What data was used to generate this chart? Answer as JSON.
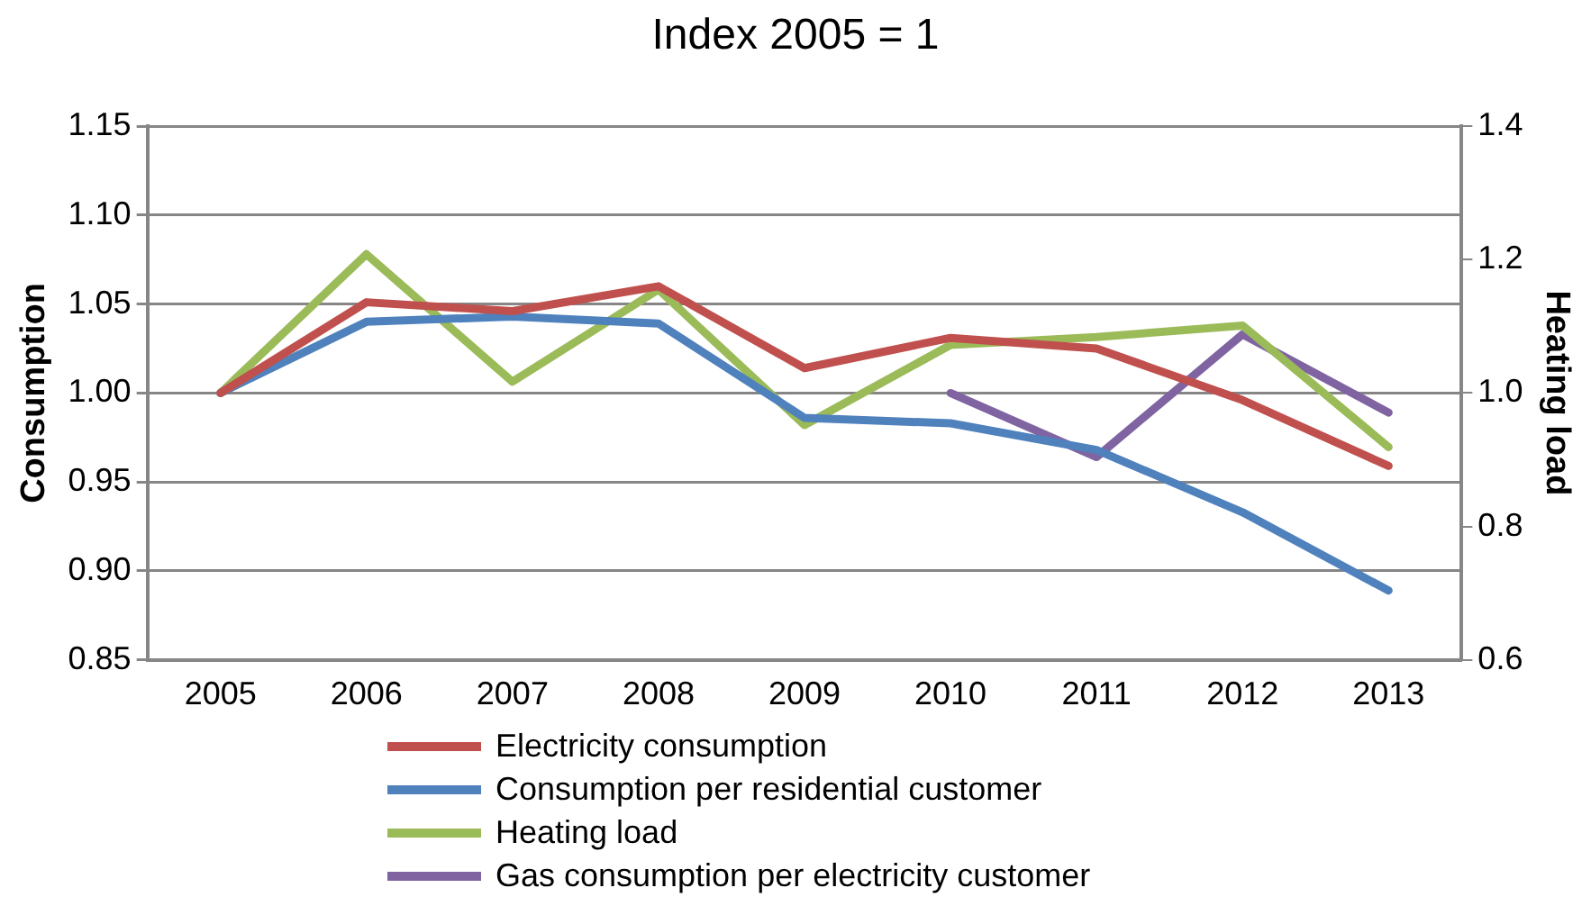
{
  "chart_data": {
    "type": "line",
    "title": "Index 2005 = 1",
    "ylabel": "Consumption",
    "y2label": "Heating load",
    "categories": [
      "2005",
      "2006",
      "2007",
      "2008",
      "2009",
      "2010",
      "2011",
      "2012",
      "2013"
    ],
    "series": [
      {
        "name": "Electricity consumption",
        "color": "#c0504d",
        "values": [
          1.0,
          1.051,
          1.046,
          1.06,
          1.014,
          1.031,
          1.025,
          0.996,
          0.959
        ]
      },
      {
        "name": "Consumption per residential customer",
        "color": "#4f81bd",
        "values": [
          1.0,
          1.04,
          1.043,
          1.039,
          0.986,
          0.983,
          0.968,
          0.933,
          0.889
        ]
      },
      {
        "name": "Heating load",
        "color": "#9bbb59",
        "axis": "y2",
        "values": [
          1.0,
          1.208,
          1.017,
          1.155,
          0.952,
          1.072,
          1.084,
          1.101,
          0.919
        ]
      },
      {
        "name": "Gas consumption per electricity customer",
        "color": "#8064a2",
        "values": [
          null,
          null,
          null,
          null,
          null,
          1.0,
          0.964,
          1.033,
          0.989
        ]
      }
    ],
    "ylim": [
      0.85,
      1.15
    ],
    "yticks": [
      {
        "value": 0.85,
        "label": "0.85"
      },
      {
        "value": 0.9,
        "label": "0.90"
      },
      {
        "value": 0.95,
        "label": "0.95"
      },
      {
        "value": 1.0,
        "label": "1.00"
      },
      {
        "value": 1.05,
        "label": "1.05"
      },
      {
        "value": 1.1,
        "label": "1.10"
      },
      {
        "value": 1.15,
        "label": "1.15"
      }
    ],
    "y2lim": [
      0.6,
      1.4
    ],
    "y2ticks": [
      {
        "value": 0.6,
        "label": "0.6"
      },
      {
        "value": 0.8,
        "label": "0.8"
      },
      {
        "value": 1.0,
        "label": "1.0"
      },
      {
        "value": 1.2,
        "label": "1.2"
      },
      {
        "value": 1.4,
        "label": "1.4"
      }
    ],
    "grid": "y",
    "legend": "bottom",
    "marker": "none",
    "line_style": "solid"
  }
}
